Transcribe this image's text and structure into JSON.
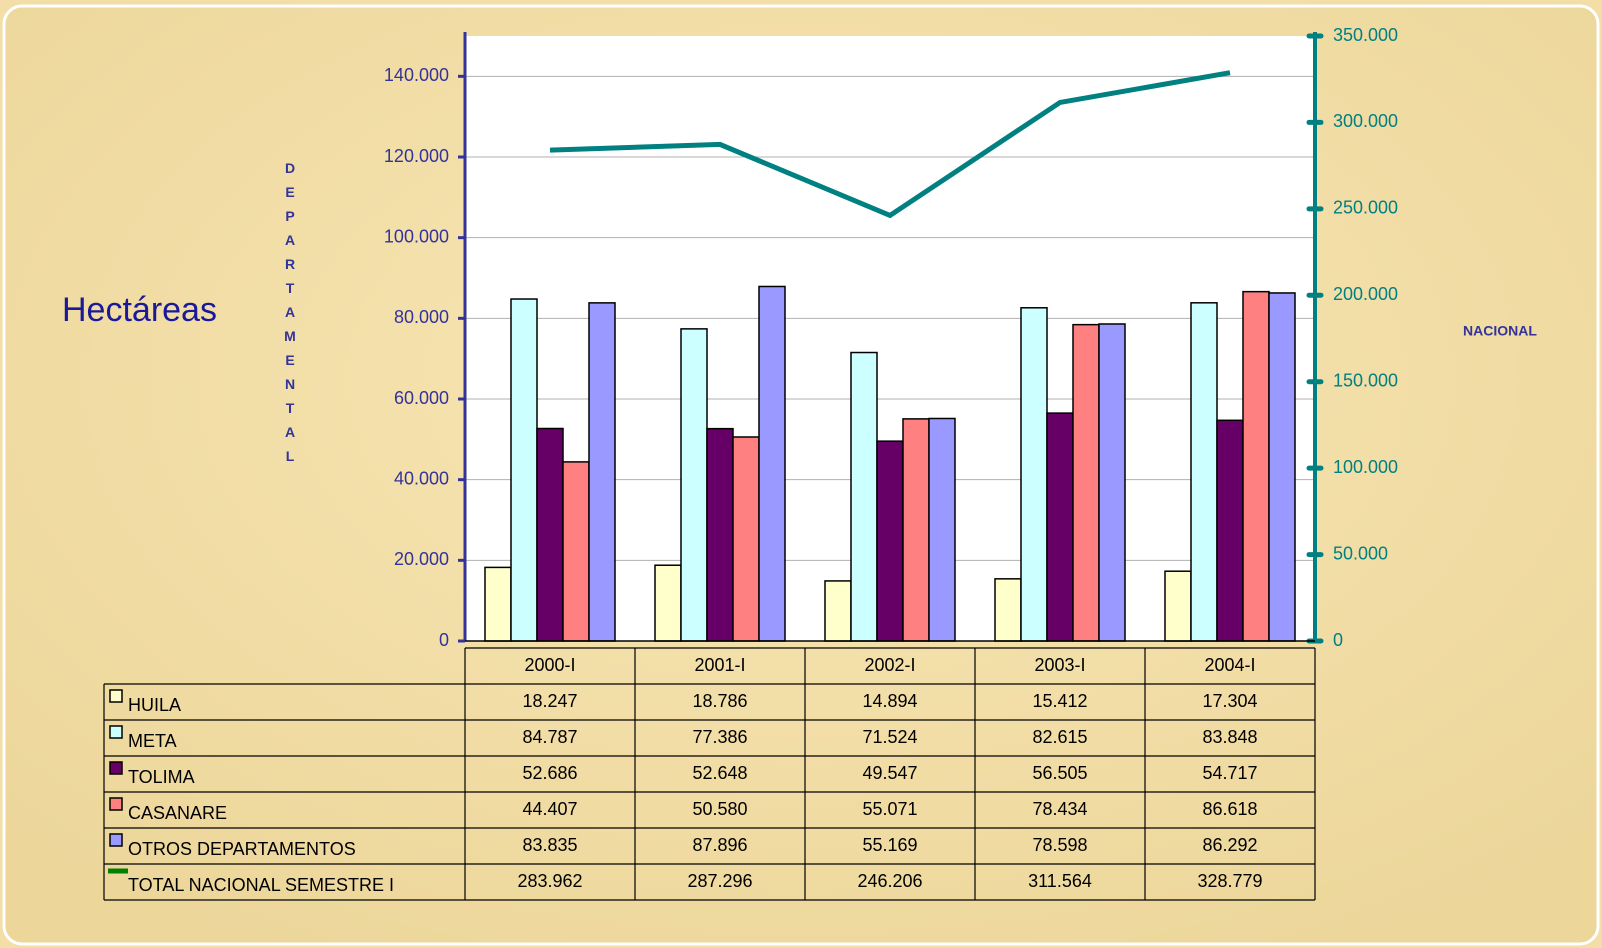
{
  "chart_data": {
    "type": "bar",
    "title": "Hectáreas",
    "y_label": "DEPARTAMENTAL",
    "y2_label": "NACIONAL",
    "categories": [
      "2000-I",
      "2001-I",
      "2002-I",
      "2003-I",
      "2004-I"
    ],
    "series": [
      {
        "name": "HUILA",
        "color": "#ffffcc",
        "values": [
          18247,
          18786,
          14894,
          15412,
          17304
        ],
        "value_labels": [
          "18.247",
          "18.786",
          "14.894",
          "15.412",
          "17.304"
        ]
      },
      {
        "name": "META",
        "color": "#ccffff",
        "values": [
          84787,
          77386,
          71524,
          82615,
          83848
        ],
        "value_labels": [
          "84.787",
          "77.386",
          "71.524",
          "82.615",
          "83.848"
        ]
      },
      {
        "name": "TOLIMA",
        "color": "#660066",
        "values": [
          52686,
          52648,
          49547,
          56505,
          54717
        ],
        "value_labels": [
          "52.686",
          "52.648",
          "49.547",
          "56.505",
          "54.717"
        ]
      },
      {
        "name": "CASANARE",
        "color": "#ff8080",
        "values": [
          44407,
          50580,
          55071,
          78434,
          86618
        ],
        "value_labels": [
          "44.407",
          "50.580",
          "55.071",
          "78.434",
          "86.618"
        ]
      },
      {
        "name": "OTROS DEPARTAMENTOS",
        "color": "#9999ff",
        "values": [
          83835,
          87896,
          55169,
          78598,
          86292
        ],
        "value_labels": [
          "83.835",
          "87.896",
          "55.169",
          "78.598",
          "86.292"
        ]
      },
      {
        "name": "TOTAL NACIONAL SEMESTRE I",
        "color": "#008080",
        "type": "line",
        "axis": "y2",
        "values": [
          283962,
          287296,
          246206,
          311564,
          328779
        ],
        "value_labels": [
          "283.962",
          "287.296",
          "246.206",
          "311.564",
          "328.779"
        ]
      }
    ],
    "ylim": [
      0,
      150000
    ],
    "yticks": [
      0,
      {
        "value": 20000,
        "label": "20.000"
      },
      {
        "value": 40000,
        "label": "40.000"
      },
      {
        "value": 60000,
        "label": "60.000"
      },
      {
        "value": 80000,
        "label": "80.000"
      },
      {
        "value": 100000,
        "label": "100.000"
      },
      {
        "value": 120000,
        "label": "120.000"
      },
      {
        "value": 140000,
        "label": "140.000"
      }
    ],
    "y2lim": [
      0,
      350000
    ],
    "y2ticks": [
      0,
      {
        "value": 50000,
        "label": "50.000"
      },
      {
        "value": 100000,
        "label": "100.000"
      },
      {
        "value": 150000,
        "label": "150.000"
      },
      {
        "value": 200000,
        "label": "200.000"
      },
      {
        "value": 250000,
        "label": "250.000"
      },
      {
        "value": 300000,
        "label": "300.000"
      },
      {
        "value": 350000,
        "label": "350.000"
      }
    ],
    "grid": true
  }
}
